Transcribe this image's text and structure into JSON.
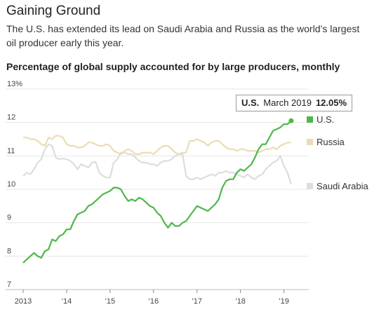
{
  "header": {
    "title": "Gaining Ground",
    "subtitle": "The U.S. has extended its lead on Saudi Arabia and Russia as the world’s largest oil producer early this year.",
    "chart_heading": "Percentage of global supply accounted for by large producers, monthly"
  },
  "tooltip": {
    "series": "U.S.",
    "date": "March 2019",
    "value": "12.05%"
  },
  "chart_data": {
    "type": "line",
    "ylim": [
      7,
      13
    ],
    "yticks": [
      7,
      8,
      9,
      10,
      11,
      12,
      13
    ],
    "ytick_labels": [
      "7",
      "8",
      "9",
      "10",
      "11",
      "12",
      "13%"
    ],
    "xlim": [
      2013.0,
      2019.25
    ],
    "xticks": [
      2013,
      2014,
      2015,
      2016,
      2017,
      2018,
      2019
    ],
    "xtick_labels": [
      "2013",
      "’14",
      "’15",
      "’16",
      "’17",
      "’18",
      "’19"
    ],
    "grid": true,
    "legend_position": "right-end",
    "series": [
      {
        "name": "Saudi Arabia",
        "color": "#dddddd",
        "x": [
          2013.0,
          2013.083,
          2013.167,
          2013.25,
          2013.333,
          2013.417,
          2013.5,
          2013.583,
          2013.667,
          2013.75,
          2013.833,
          2013.917,
          2014.0,
          2014.083,
          2014.167,
          2014.25,
          2014.333,
          2014.417,
          2014.5,
          2014.583,
          2014.667,
          2014.75,
          2014.833,
          2014.917,
          2015.0,
          2015.083,
          2015.167,
          2015.25,
          2015.333,
          2015.417,
          2015.5,
          2015.583,
          2015.667,
          2015.75,
          2015.833,
          2015.917,
          2016.0,
          2016.083,
          2016.167,
          2016.25,
          2016.333,
          2016.417,
          2016.5,
          2016.583,
          2016.667,
          2016.75,
          2016.833,
          2016.917,
          2017.0,
          2017.083,
          2017.167,
          2017.25,
          2017.333,
          2017.417,
          2017.5,
          2017.583,
          2017.667,
          2017.75,
          2017.833,
          2017.917,
          2018.0,
          2018.083,
          2018.167,
          2018.25,
          2018.333,
          2018.417,
          2018.5,
          2018.583,
          2018.667,
          2018.75,
          2018.833,
          2018.917,
          2019.0,
          2019.083,
          2019.167
        ],
        "y": [
          10.4,
          10.5,
          10.45,
          10.6,
          10.8,
          10.9,
          11.2,
          11.35,
          11.3,
          10.95,
          10.9,
          10.92,
          10.9,
          10.85,
          10.75,
          10.6,
          10.75,
          10.7,
          10.65,
          10.8,
          10.82,
          10.5,
          10.4,
          10.35,
          10.35,
          10.8,
          10.9,
          11.1,
          11.1,
          11.05,
          11.05,
          10.95,
          10.85,
          10.8,
          10.8,
          10.75,
          10.75,
          10.7,
          10.8,
          10.85,
          10.85,
          10.9,
          11.0,
          11.05,
          11.05,
          10.4,
          10.3,
          10.3,
          10.35,
          10.3,
          10.35,
          10.4,
          10.45,
          10.4,
          10.5,
          10.5,
          10.55,
          10.5,
          10.5,
          10.45,
          10.4,
          10.35,
          10.45,
          10.35,
          10.3,
          10.4,
          10.45,
          10.6,
          10.7,
          10.8,
          10.85,
          11.0,
          10.7,
          10.5,
          10.15
        ]
      },
      {
        "name": "Russia",
        "color": "#ebdcb4",
        "x": [
          2013.0,
          2013.083,
          2013.167,
          2013.25,
          2013.333,
          2013.417,
          2013.5,
          2013.583,
          2013.667,
          2013.75,
          2013.833,
          2013.917,
          2014.0,
          2014.083,
          2014.167,
          2014.25,
          2014.333,
          2014.417,
          2014.5,
          2014.583,
          2014.667,
          2014.75,
          2014.833,
          2014.917,
          2015.0,
          2015.083,
          2015.167,
          2015.25,
          2015.333,
          2015.417,
          2015.5,
          2015.583,
          2015.667,
          2015.75,
          2015.833,
          2015.917,
          2016.0,
          2016.083,
          2016.167,
          2016.25,
          2016.333,
          2016.417,
          2016.5,
          2016.583,
          2016.667,
          2016.75,
          2016.833,
          2016.917,
          2017.0,
          2017.083,
          2017.167,
          2017.25,
          2017.333,
          2017.417,
          2017.5,
          2017.583,
          2017.667,
          2017.75,
          2017.833,
          2017.917,
          2018.0,
          2018.083,
          2018.167,
          2018.25,
          2018.333,
          2018.417,
          2018.5,
          2018.583,
          2018.667,
          2018.75,
          2018.833,
          2018.917,
          2019.0,
          2019.083,
          2019.167
        ],
        "y": [
          11.55,
          11.55,
          11.5,
          11.5,
          11.45,
          11.35,
          11.3,
          11.55,
          11.5,
          11.6,
          11.6,
          11.55,
          11.35,
          11.3,
          11.3,
          11.25,
          11.25,
          11.3,
          11.4,
          11.4,
          11.35,
          11.3,
          11.3,
          11.35,
          11.3,
          11.15,
          11.1,
          11.05,
          11.15,
          11.2,
          11.15,
          11.05,
          11.05,
          11.1,
          11.1,
          11.1,
          11.05,
          11.15,
          11.25,
          11.3,
          11.3,
          11.2,
          11.1,
          11.05,
          11.1,
          11.1,
          11.45,
          11.45,
          11.5,
          11.45,
          11.4,
          11.3,
          11.4,
          11.45,
          11.45,
          11.35,
          11.25,
          11.2,
          11.2,
          11.15,
          11.2,
          11.2,
          11.15,
          11.15,
          11.15,
          11.1,
          11.15,
          11.2,
          11.2,
          11.25,
          11.2,
          11.3,
          11.35,
          11.4,
          11.4
        ]
      },
      {
        "name": "U.S.",
        "color": "#4db848",
        "x": [
          2013.0,
          2013.083,
          2013.167,
          2013.25,
          2013.333,
          2013.417,
          2013.5,
          2013.583,
          2013.667,
          2013.75,
          2013.833,
          2013.917,
          2014.0,
          2014.083,
          2014.167,
          2014.25,
          2014.333,
          2014.417,
          2014.5,
          2014.583,
          2014.667,
          2014.75,
          2014.833,
          2014.917,
          2015.0,
          2015.083,
          2015.167,
          2015.25,
          2015.333,
          2015.417,
          2015.5,
          2015.583,
          2015.667,
          2015.75,
          2015.833,
          2015.917,
          2016.0,
          2016.083,
          2016.167,
          2016.25,
          2016.333,
          2016.417,
          2016.5,
          2016.583,
          2016.667,
          2016.75,
          2016.833,
          2016.917,
          2017.0,
          2017.083,
          2017.167,
          2017.25,
          2017.333,
          2017.417,
          2017.5,
          2017.583,
          2017.667,
          2017.75,
          2017.833,
          2017.917,
          2018.0,
          2018.083,
          2018.167,
          2018.25,
          2018.333,
          2018.417,
          2018.5,
          2018.583,
          2018.667,
          2018.75,
          2018.833,
          2018.917,
          2019.0,
          2019.083,
          2019.167
        ],
        "y": [
          7.8,
          7.9,
          8.0,
          8.1,
          8.0,
          7.95,
          8.15,
          8.2,
          8.5,
          8.45,
          8.6,
          8.65,
          8.8,
          8.8,
          9.05,
          9.25,
          9.3,
          9.35,
          9.5,
          9.55,
          9.65,
          9.75,
          9.85,
          9.9,
          9.95,
          10.05,
          10.05,
          10.0,
          9.8,
          9.65,
          9.7,
          9.65,
          9.75,
          9.7,
          9.6,
          9.5,
          9.45,
          9.3,
          9.2,
          9.0,
          8.85,
          9.0,
          8.9,
          8.9,
          9.0,
          9.05,
          9.2,
          9.35,
          9.5,
          9.45,
          9.4,
          9.35,
          9.45,
          9.55,
          9.7,
          10.05,
          10.25,
          10.3,
          10.3,
          10.5,
          10.6,
          10.55,
          10.65,
          10.75,
          10.95,
          11.2,
          11.35,
          11.35,
          11.55,
          11.75,
          11.8,
          11.85,
          11.95,
          11.95,
          12.05
        ]
      }
    ]
  }
}
